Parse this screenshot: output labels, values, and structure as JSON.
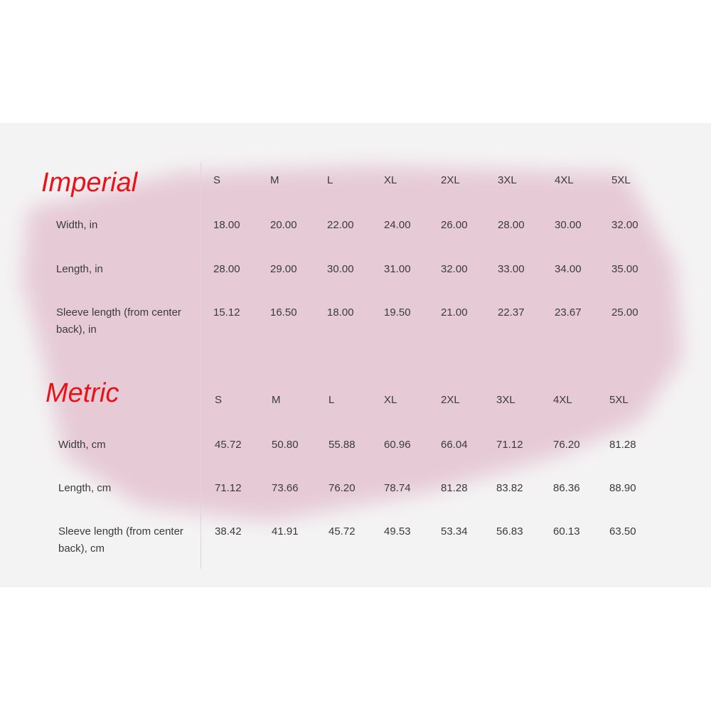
{
  "colors": {
    "title": "#e5141b",
    "brush": "#e6cbd6",
    "band": "#f4f3f4"
  },
  "sections": [
    {
      "title": "Imperial",
      "sizes": [
        "S",
        "M",
        "L",
        "XL",
        "2XL",
        "3XL",
        "4XL",
        "5XL"
      ],
      "rows": [
        {
          "label": "Width, in",
          "values": [
            "18.00",
            "20.00",
            "22.00",
            "24.00",
            "26.00",
            "28.00",
            "30.00",
            "32.00"
          ]
        },
        {
          "label": "Length, in",
          "values": [
            "28.00",
            "29.00",
            "30.00",
            "31.00",
            "32.00",
            "33.00",
            "34.00",
            "35.00"
          ]
        },
        {
          "label": "Sleeve length (from center back), in",
          "values": [
            "15.12",
            "16.50",
            "18.00",
            "19.50",
            "21.00",
            "22.37",
            "23.67",
            "25.00"
          ]
        }
      ]
    },
    {
      "title": "Metric",
      "sizes": [
        "S",
        "M",
        "L",
        "XL",
        "2XL",
        "3XL",
        "4XL",
        "5XL"
      ],
      "rows": [
        {
          "label": "Width, cm",
          "values": [
            "45.72",
            "50.80",
            "55.88",
            "60.96",
            "66.04",
            "71.12",
            "76.20",
            "81.28"
          ]
        },
        {
          "label": "Length, cm",
          "values": [
            "71.12",
            "73.66",
            "76.20",
            "78.74",
            "81.28",
            "83.82",
            "86.36",
            "88.90"
          ]
        },
        {
          "label": "Sleeve length (from center back), cm",
          "values": [
            "38.42",
            "41.91",
            "45.72",
            "49.53",
            "53.34",
            "56.83",
            "60.13",
            "63.50"
          ]
        }
      ]
    }
  ]
}
